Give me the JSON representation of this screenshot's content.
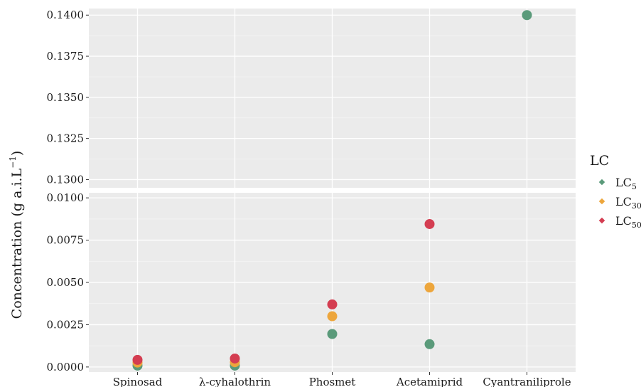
{
  "chart_data": {
    "type": "scatter",
    "categories": [
      "Spinosad",
      "λ-cyhalothrin",
      "Phosmet",
      "Acetamiprid",
      "Cyantraniliprole"
    ],
    "ylabel": "Concentration (g a.i.L⁻¹)",
    "ylabel_main": "Concentration (g a.i.L",
    "ylabel_sup": "−1",
    "ylabel_close": ")",
    "panels": [
      {
        "name": "upper",
        "ylim": [
          0.1295,
          0.1404
        ],
        "ticks": [
          {
            "value": 0.13,
            "label": "0.1300"
          },
          {
            "value": 0.1325,
            "label": "0.1325"
          },
          {
            "value": 0.135,
            "label": "0.1350"
          },
          {
            "value": 0.1375,
            "label": "0.1375"
          },
          {
            "value": 0.14,
            "label": "0.1400"
          }
        ]
      },
      {
        "name": "lower",
        "ylim": [
          -0.0003,
          0.0103
        ],
        "ticks": [
          {
            "value": 0.0,
            "label": "0.0000"
          },
          {
            "value": 0.0025,
            "label": "0.0025"
          },
          {
            "value": 0.005,
            "label": "0.0050"
          },
          {
            "value": 0.0075,
            "label": "0.0075"
          },
          {
            "value": 0.01,
            "label": "0.0100"
          }
        ]
      }
    ],
    "series": [
      {
        "name": "LC5",
        "base": "LC",
        "sub": "5",
        "color": "#5a9a7a",
        "values": [
          8e-05,
          8e-05,
          0.00195,
          0.00135,
          0.14
        ]
      },
      {
        "name": "LC30",
        "base": "LC",
        "sub": "30",
        "color": "#eda63c",
        "values": [
          0.00026,
          0.00028,
          0.003,
          0.0047,
          null
        ]
      },
      {
        "name": "LC50",
        "base": "LC",
        "sub": "50",
        "color": "#d43d51",
        "values": [
          0.00042,
          0.0005,
          0.0037,
          0.00845,
          null
        ]
      }
    ],
    "legend": {
      "title": "LC",
      "position": "right"
    },
    "grid": true
  }
}
